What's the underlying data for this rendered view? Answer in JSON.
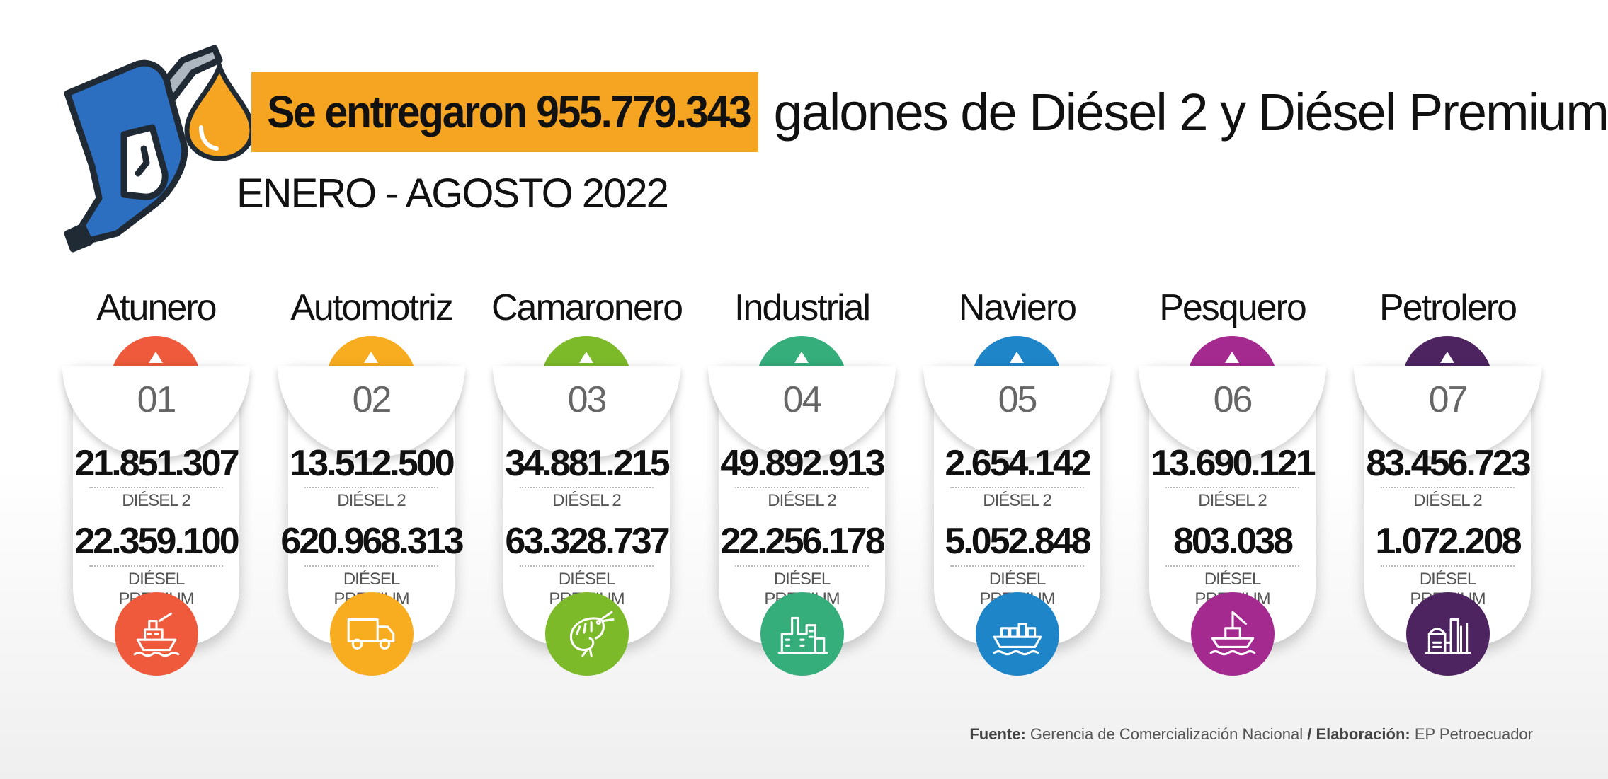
{
  "header": {
    "highlight": "Se entregaron 955.779.343",
    "rest": "galones de Diésel 2 y Diésel Premium",
    "period": "ENERO - AGOSTO 2022"
  },
  "colors": {
    "orange": "#f5a522",
    "pump_blue": "#2c6fc0"
  },
  "sectors": [
    {
      "name": "Atunero",
      "num": "01",
      "diesel2": "21.851.307",
      "diesel2_label": "DIÉSEL 2",
      "premium": "22.359.100",
      "premium_label": "DIÉSEL PREMIUM",
      "color": "#ef5a3c",
      "icon": "tuna-boat-icon"
    },
    {
      "name": "Automotriz",
      "num": "02",
      "diesel2": "13.512.500",
      "diesel2_label": "DIÉSEL 2",
      "premium": "620.968.313",
      "premium_label": "DIÉSEL PREMIUM",
      "color": "#f7ad1f",
      "icon": "truck-icon"
    },
    {
      "name": "Camaronero",
      "num": "03",
      "diesel2": "34.881.215",
      "diesel2_label": "DIÉSEL 2",
      "premium": "63.328.737",
      "premium_label": "DIÉSEL PREMIUM",
      "color": "#7cba2a",
      "icon": "shrimp-icon"
    },
    {
      "name": "Industrial",
      "num": "04",
      "diesel2": "49.892.913",
      "diesel2_label": "DIÉSEL 2",
      "premium": "22.256.178",
      "premium_label": "DIÉSEL PREMIUM",
      "color": "#35ae7c",
      "icon": "factory-icon"
    },
    {
      "name": "Naviero",
      "num": "05",
      "diesel2": "2.654.142",
      "diesel2_label": "DIÉSEL 2",
      "premium": "5.052.848",
      "premium_label": "DIÉSEL PREMIUM",
      "color": "#1e85c9",
      "icon": "cargo-ship-icon"
    },
    {
      "name": "Pesquero",
      "num": "06",
      "diesel2": "13.690.121",
      "diesel2_label": "DIÉSEL 2",
      "premium": "803.038",
      "premium_label": "DIÉSEL PREMIUM",
      "color": "#a52a90",
      "icon": "fishing-boat-icon"
    },
    {
      "name": "Petrolero",
      "num": "07",
      "diesel2": "83.456.723",
      "diesel2_label": "DIÉSEL 2",
      "premium": "1.072.208",
      "premium_label": "DIÉSEL PREMIUM",
      "color": "#4d2460",
      "icon": "refinery-icon"
    }
  ],
  "footer": {
    "source_label": "Fuente:",
    "source": "Gerencia de Comercialización Nacional",
    "sep": "/",
    "made_label": "Elaboración:",
    "made": "EP Petroecuador"
  }
}
